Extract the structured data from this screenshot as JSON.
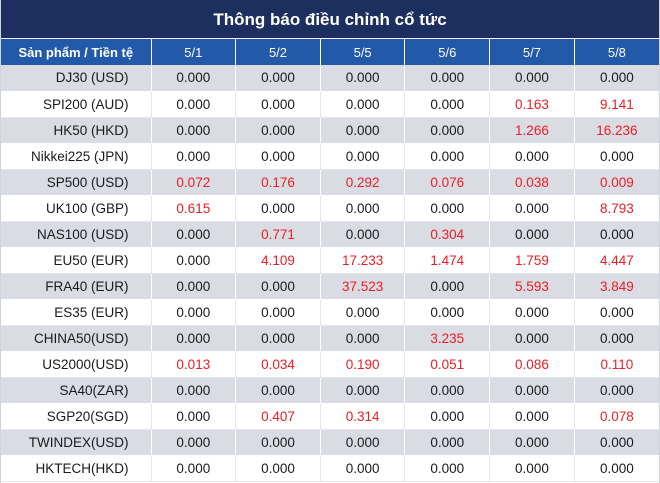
{
  "title": "Thông báo điều chỉnh cổ tức",
  "header": {
    "product": "Sản phẩm / Tiền tệ",
    "dates": [
      "5/1",
      "5/2",
      "5/5",
      "5/6",
      "5/7",
      "5/8"
    ]
  },
  "colors": {
    "title_bg": "#1d2f5e",
    "header_bg": "#2259a8",
    "highlight": "#ee1c25"
  },
  "rows": [
    {
      "product": "DJ30 (USD)",
      "values": [
        "0.000",
        "0.000",
        "0.000",
        "0.000",
        "0.000",
        "0.000"
      ]
    },
    {
      "product": "SPI200 (AUD)",
      "values": [
        "0.000",
        "0.000",
        "0.000",
        "0.000",
        "0.163",
        "9.141"
      ]
    },
    {
      "product": "HK50 (HKD)",
      "values": [
        "0.000",
        "0.000",
        "0.000",
        "0.000",
        "1.266",
        "16.236"
      ]
    },
    {
      "product": "Nikkei225 (JPN)",
      "values": [
        "0.000",
        "0.000",
        "0.000",
        "0.000",
        "0.000",
        "0.000"
      ]
    },
    {
      "product": "SP500 (USD)",
      "values": [
        "0.072",
        "0.176",
        "0.292",
        "0.076",
        "0.038",
        "0.009"
      ]
    },
    {
      "product": "UK100 (GBP)",
      "values": [
        "0.615",
        "0.000",
        "0.000",
        "0.000",
        "0.000",
        "8.793"
      ]
    },
    {
      "product": "NAS100 (USD)",
      "values": [
        "0.000",
        "0.771",
        "0.000",
        "0.304",
        "0.000",
        "0.000"
      ]
    },
    {
      "product": "EU50 (EUR)",
      "values": [
        "0.000",
        "4.109",
        "17.233",
        "1.474",
        "1.759",
        "4.447"
      ]
    },
    {
      "product": "FRA40 (EUR)",
      "values": [
        "0.000",
        "0.000",
        "37.523",
        "0.000",
        "5.593",
        "3.849"
      ]
    },
    {
      "product": "ES35 (EUR)",
      "values": [
        "0.000",
        "0.000",
        "0.000",
        "0.000",
        "0.000",
        "0.000"
      ]
    },
    {
      "product": "CHINA50(USD)",
      "values": [
        "0.000",
        "0.000",
        "0.000",
        "3.235",
        "0.000",
        "0.000"
      ]
    },
    {
      "product": "US2000(USD)",
      "values": [
        "0.013",
        "0.034",
        "0.190",
        "0.051",
        "0.086",
        "0.110"
      ]
    },
    {
      "product": "SA40(ZAR)",
      "values": [
        "0.000",
        "0.000",
        "0.000",
        "0.000",
        "0.000",
        "0.000"
      ]
    },
    {
      "product": "SGP20(SGD)",
      "values": [
        "0.000",
        "0.407",
        "0.314",
        "0.000",
        "0.000",
        "0.078"
      ]
    },
    {
      "product": "TWINDEX(USD)",
      "values": [
        "0.000",
        "0.000",
        "0.000",
        "0.000",
        "0.000",
        "0.000"
      ]
    },
    {
      "product": "HKTECH(HKD)",
      "values": [
        "0.000",
        "0.000",
        "0.000",
        "0.000",
        "0.000",
        "0.000"
      ]
    }
  ]
}
